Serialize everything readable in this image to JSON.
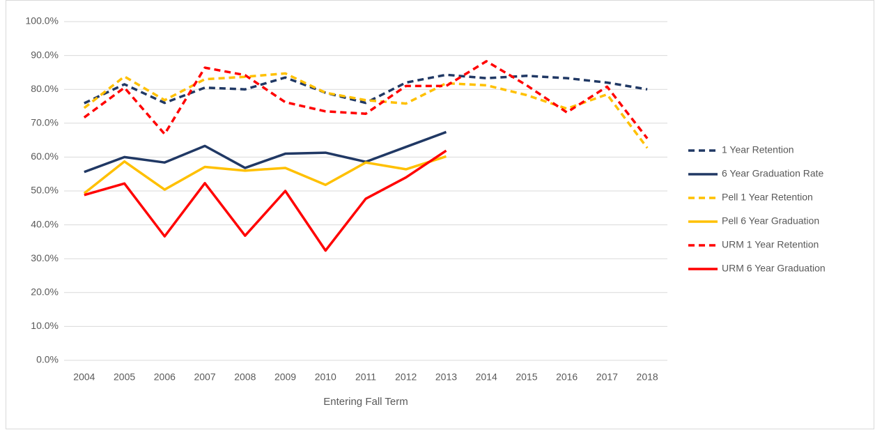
{
  "chart_data": {
    "type": "line",
    "x_label": "Entering Fall Term",
    "categories": [
      "2004",
      "2005",
      "2006",
      "2007",
      "2008",
      "2009",
      "2010",
      "2011",
      "2012",
      "2013",
      "2014",
      "2015",
      "2016",
      "2017",
      "2018"
    ],
    "ylim": [
      0,
      100
    ],
    "yticks": [
      {
        "value": 0,
        "label": "0.0%"
      },
      {
        "value": 10,
        "label": "10.0%"
      },
      {
        "value": 20,
        "label": "20.0%"
      },
      {
        "value": 30,
        "label": "30.0%"
      },
      {
        "value": 40,
        "label": "40.0%"
      },
      {
        "value": 50,
        "label": "50.0%"
      },
      {
        "value": 60,
        "label": "60.0%"
      },
      {
        "value": 70,
        "label": "70.0%"
      },
      {
        "value": 80,
        "label": "80.0%"
      },
      {
        "value": 90,
        "label": "90.0%"
      },
      {
        "value": 100,
        "label": "100.0%"
      }
    ],
    "grid": true,
    "legend": "right",
    "series": [
      {
        "name": "1 Year Retention",
        "color": "#203864",
        "dashed": true,
        "values": [
          75.9,
          81.5,
          76.0,
          80.5,
          80.0,
          83.5,
          79.0,
          76.0,
          82.0,
          84.3,
          83.3,
          84.0,
          83.3,
          82.0,
          80.0
        ]
      },
      {
        "name": "6 Year Graduation Rate",
        "color": "#203864",
        "dashed": false,
        "values": [
          55.6,
          60.0,
          58.4,
          63.3,
          56.8,
          61.0,
          61.3,
          58.6,
          63.0,
          67.4,
          null,
          null,
          null,
          null,
          null
        ]
      },
      {
        "name": "Pell 1 Year Retention",
        "color": "#ffc000",
        "dashed": true,
        "values": [
          74.5,
          83.8,
          76.8,
          83.0,
          83.7,
          84.7,
          79.0,
          76.8,
          75.8,
          81.8,
          81.2,
          78.3,
          74.3,
          78.5,
          62.7
        ]
      },
      {
        "name": "Pell 6 Year Graduation",
        "color": "#ffc000",
        "dashed": false,
        "values": [
          49.3,
          58.7,
          50.4,
          57.1,
          56.0,
          56.8,
          51.8,
          58.4,
          56.4,
          60.2,
          null,
          null,
          null,
          null,
          null
        ]
      },
      {
        "name": "URM 1 Year Retention",
        "color": "#ff0000",
        "dashed": true,
        "values": [
          71.7,
          80.5,
          66.8,
          86.4,
          84.2,
          76.2,
          73.5,
          72.8,
          81.0,
          81.0,
          88.3,
          81.2,
          73.2,
          80.8,
          65.5
        ]
      },
      {
        "name": "URM 6 Year Graduation",
        "color": "#ff0000",
        "dashed": false,
        "values": [
          48.8,
          52.2,
          36.6,
          52.3,
          36.8,
          50.0,
          32.4,
          47.7,
          54.0,
          61.9,
          null,
          null,
          null,
          null,
          null
        ]
      }
    ]
  }
}
